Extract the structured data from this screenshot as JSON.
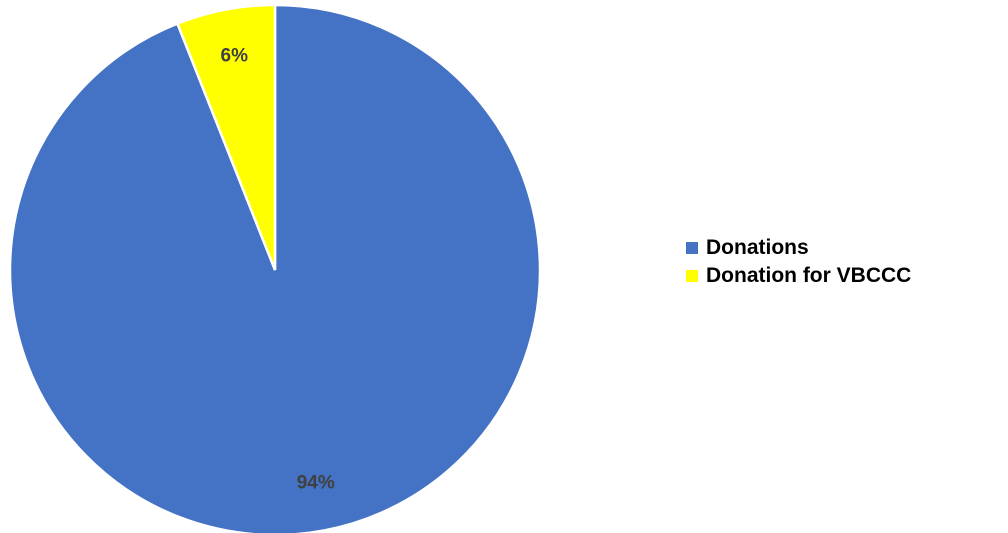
{
  "chart_data": {
    "type": "pie",
    "categories": [
      "Donations",
      "Donation for VBCCC"
    ],
    "values": [
      94,
      6
    ],
    "data_labels": [
      "94%",
      "6%"
    ],
    "colors": [
      "#4472c4",
      "#ffff00"
    ],
    "start_angle": "12 o'clock",
    "direction": "clockwise from second slice",
    "legend_position": "right"
  }
}
